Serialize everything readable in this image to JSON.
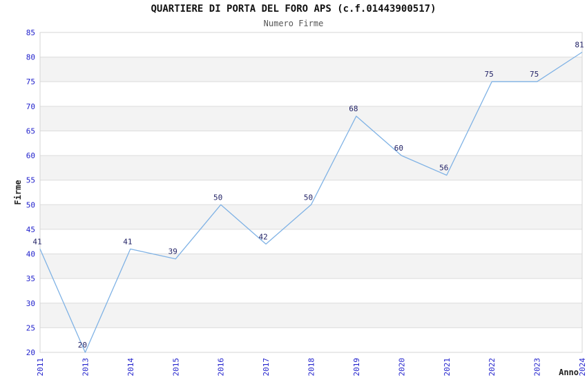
{
  "chart_data": {
    "type": "line",
    "title": "QUARTIERE DI PORTA DEL FORO APS (c.f.01443900517)",
    "subtitle": "Numero Firme",
    "xlabel": "Anno",
    "ylabel": "Firme",
    "x": [
      "2011",
      "2013",
      "2014",
      "2015",
      "2016",
      "2017",
      "2018",
      "2019",
      "2020",
      "2021",
      "2022",
      "2023",
      "2024"
    ],
    "values": [
      41,
      20,
      41,
      39,
      50,
      42,
      50,
      68,
      60,
      56,
      75,
      75,
      81
    ],
    "ylim": [
      20,
      85
    ],
    "ytick_step": 5,
    "grid": true,
    "legend": "none",
    "colors": {
      "line": "#7FB2E5",
      "tick_label": "#2222CC",
      "data_label": "#222266",
      "grid_line": "#DCDCDC",
      "band_alt": "#F3F3F3",
      "plot_border": "#D4D4D4",
      "axis_title": "#222222"
    }
  }
}
